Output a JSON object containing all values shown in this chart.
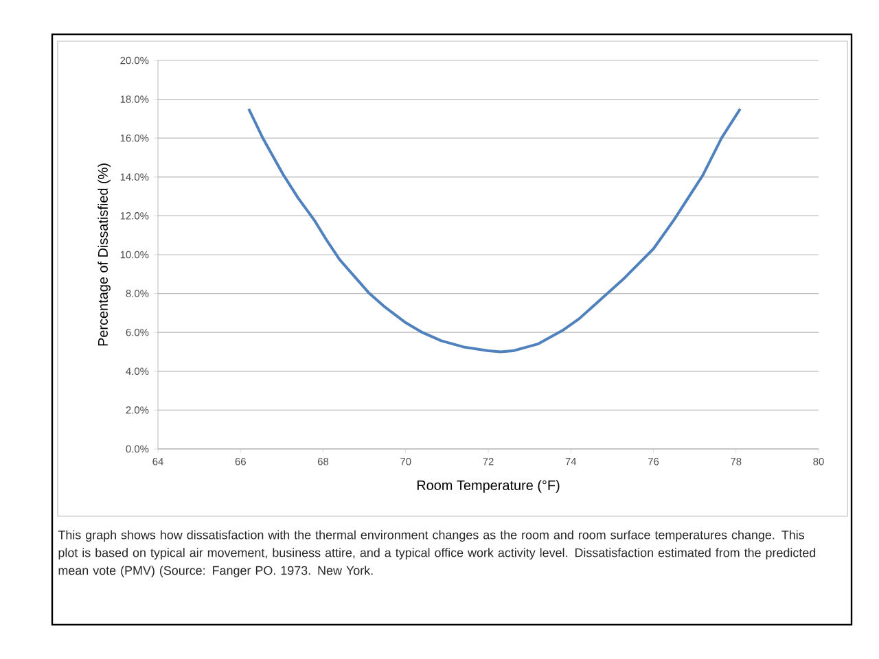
{
  "chart_data": {
    "type": "line",
    "xlabel": "Room Temperature (°F)",
    "ylabel": "Percentage of Dissatisfied (%)",
    "x": [
      66.2,
      66.54,
      67.04,
      67.4,
      67.78,
      68.1,
      68.4,
      68.75,
      69.1,
      69.5,
      70.0,
      70.4,
      70.86,
      71.4,
      72.0,
      72.3,
      72.6,
      73.2,
      73.8,
      74.2,
      74.57,
      75.3,
      76.0,
      76.5,
      77.2,
      77.65,
      78.1
    ],
    "series": [
      {
        "color": "#4f81bd",
        "values": [
          17.5,
          16.0,
          14.1,
          12.9,
          11.8,
          10.7,
          9.75,
          8.9,
          8.05,
          7.3,
          6.5,
          6.0,
          5.57,
          5.25,
          5.05,
          5.0,
          5.05,
          5.4,
          6.1,
          6.7,
          7.4,
          8.8,
          10.3,
          11.8,
          14.1,
          16.0,
          17.5
        ]
      }
    ],
    "xlim": [
      64,
      80
    ],
    "xticks": [
      64,
      66,
      68,
      70,
      72,
      74,
      76,
      78,
      80
    ],
    "ylim": [
      0,
      20
    ],
    "yticks": [
      {
        "value": 0,
        "label": "0.0%"
      },
      {
        "value": 2,
        "label": "2.0%"
      },
      {
        "value": 4,
        "label": "4.0%"
      },
      {
        "value": 6,
        "label": "6.0%"
      },
      {
        "value": 8,
        "label": "8.0%"
      },
      {
        "value": 10,
        "label": "10.0%"
      },
      {
        "value": 12,
        "label": "12.0%"
      },
      {
        "value": 14,
        "label": "14.0%"
      },
      {
        "value": 16,
        "label": "16.0%"
      },
      {
        "value": 18,
        "label": "18.0%"
      },
      {
        "value": 20,
        "label": "20.0%"
      }
    ],
    "grid": "y",
    "marker": "none",
    "line_style": "solid",
    "annotations": [
      "This graph shows how dissatisfaction with the thermal environment changes as the room and room surface temperatures change.  This plot is based on typical air movement, business attire, and a typical office work activity level.  Dissatisfaction estimated from the predicted mean vote (PMV) (Source: Fanger PO.  1973.  New York."
    ]
  }
}
